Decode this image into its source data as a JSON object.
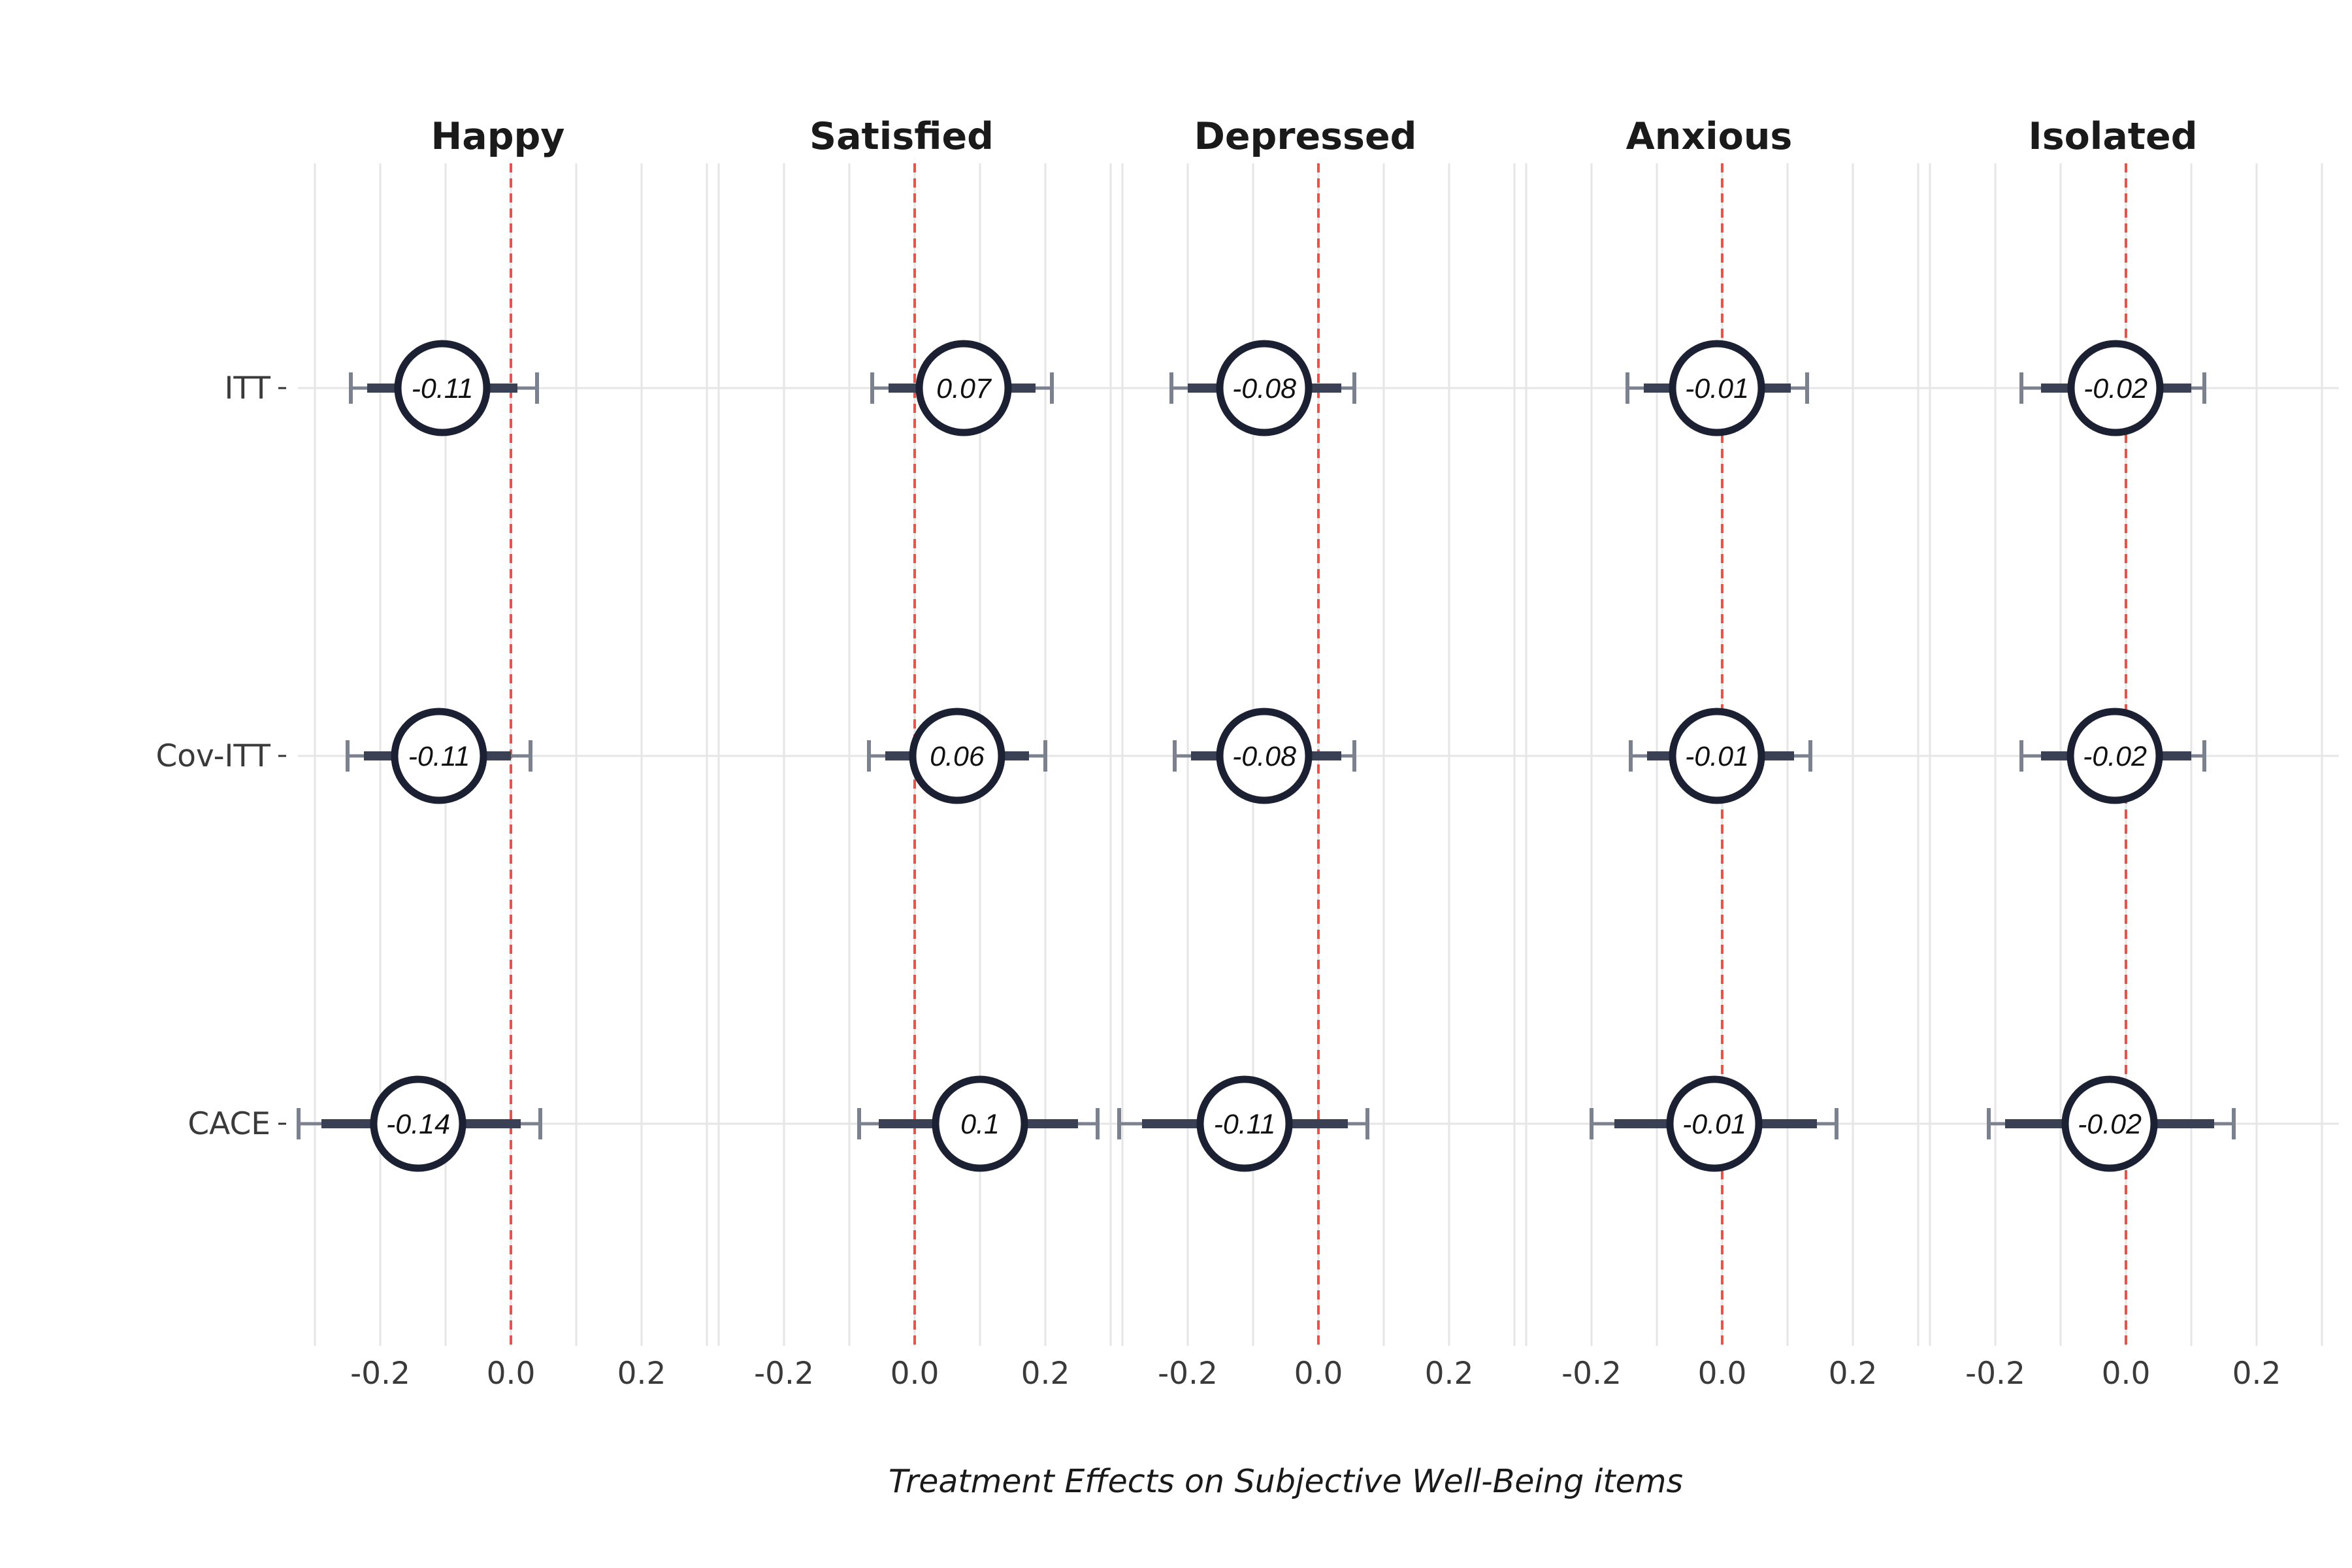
{
  "chart_data": {
    "type": "forest",
    "xlabel": "Treatment Effects on Subjective Well-Being items",
    "ylabel": "",
    "xlim": [
      -0.3,
      0.3
    ],
    "x_ticks": [
      "-0.2",
      "0.0",
      "0.2"
    ],
    "x_tick_values": [
      -0.2,
      0.0,
      0.2
    ],
    "reference_line": 0.0,
    "grid": true,
    "legend": "none",
    "colors": {
      "reference_line": "#e8534a",
      "marker": "#1c2033",
      "whisker": "#7c8190",
      "bar": "#3a4154",
      "grid": "#e6e6e6"
    },
    "rows": [
      "ITT",
      "Cov-ITT",
      "CACE"
    ],
    "panels": [
      {
        "title": "Happy",
        "estimates": [
          {
            "row": "ITT",
            "label": "-0.11",
            "value": -0.105,
            "ci90": [
              -0.22,
              0.01
            ],
            "ci95": [
              -0.245,
              0.04
            ]
          },
          {
            "row": "Cov-ITT",
            "label": "-0.11",
            "value": -0.11,
            "ci90": [
              -0.225,
              0.0
            ],
            "ci95": [
              -0.25,
              0.03
            ]
          },
          {
            "row": "CACE",
            "label": "-0.14",
            "value": -0.142,
            "ci90": [
              -0.29,
              0.015
            ],
            "ci95": [
              -0.325,
              0.045
            ]
          }
        ]
      },
      {
        "title": "Satisfied",
        "estimates": [
          {
            "row": "ITT",
            "label": "0.07",
            "value": 0.075,
            "ci90": [
              -0.04,
              0.185
            ],
            "ci95": [
              -0.065,
              0.21
            ]
          },
          {
            "row": "Cov-ITT",
            "label": "0.06",
            "value": 0.065,
            "ci90": [
              -0.045,
              0.175
            ],
            "ci95": [
              -0.07,
              0.2
            ]
          },
          {
            "row": "CACE",
            "label": "0.1",
            "value": 0.1,
            "ci90": [
              -0.055,
              0.25
            ],
            "ci95": [
              -0.085,
              0.28
            ]
          }
        ]
      },
      {
        "title": "Depressed",
        "estimates": [
          {
            "row": "ITT",
            "label": "-0.08",
            "value": -0.083,
            "ci90": [
              -0.2,
              0.035
            ],
            "ci95": [
              -0.225,
              0.055
            ]
          },
          {
            "row": "Cov-ITT",
            "label": "-0.08",
            "value": -0.083,
            "ci90": [
              -0.195,
              0.035
            ],
            "ci95": [
              -0.22,
              0.055
            ]
          },
          {
            "row": "CACE",
            "label": "-0.11",
            "value": -0.113,
            "ci90": [
              -0.27,
              0.045
            ],
            "ci95": [
              -0.305,
              0.075
            ]
          }
        ]
      },
      {
        "title": "Anxious",
        "estimates": [
          {
            "row": "ITT",
            "label": "-0.01",
            "value": -0.008,
            "ci90": [
              -0.12,
              0.105
            ],
            "ci95": [
              -0.145,
              0.13
            ]
          },
          {
            "row": "Cov-ITT",
            "label": "-0.01",
            "value": -0.008,
            "ci90": [
              -0.115,
              0.11
            ],
            "ci95": [
              -0.14,
              0.135
            ]
          },
          {
            "row": "CACE",
            "label": "-0.01",
            "value": -0.012,
            "ci90": [
              -0.165,
              0.145
            ],
            "ci95": [
              -0.2,
              0.175
            ]
          }
        ]
      },
      {
        "title": "Isolated",
        "estimates": [
          {
            "row": "ITT",
            "label": "-0.02",
            "value": -0.016,
            "ci90": [
              -0.13,
              0.1
            ],
            "ci95": [
              -0.16,
              0.12
            ]
          },
          {
            "row": "Cov-ITT",
            "label": "-0.02",
            "value": -0.017,
            "ci90": [
              -0.13,
              0.1
            ],
            "ci95": [
              -0.16,
              0.12
            ]
          },
          {
            "row": "CACE",
            "label": "-0.02",
            "value": -0.025,
            "ci90": [
              -0.185,
              0.135
            ],
            "ci95": [
              -0.21,
              0.165
            ]
          }
        ]
      }
    ]
  }
}
